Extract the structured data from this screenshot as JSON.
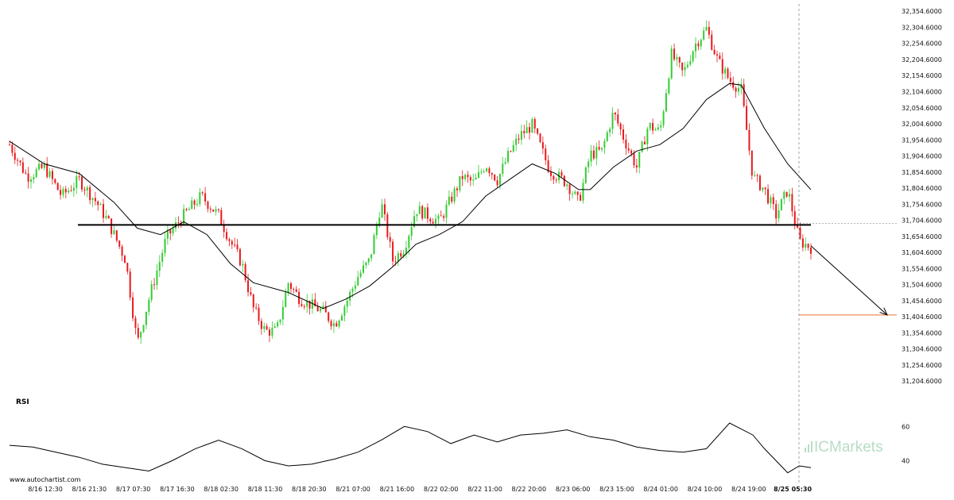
{
  "branding": {
    "watermark": "www.autochartist.com",
    "logo_text": "ICMarkets"
  },
  "colors": {
    "up": "#33cc33",
    "down": "#e8191c",
    "line": "#000000",
    "target": "#e8762c",
    "grid": "#dddddd"
  },
  "chart_data": {
    "type": "candlestick",
    "price_axis": {
      "range": [
        31180,
        32370
      ],
      "ticks": [
        "32,354.6000",
        "32,304.6000",
        "32,254.6000",
        "32,204.6000",
        "32,154.6000",
        "32,104.6000",
        "32,054.6000",
        "32,004.6000",
        "31,954.6000",
        "31,904.6000",
        "31,854.6000",
        "31,804.6000",
        "31,754.6000",
        "31,704.6000",
        "31,654.6000",
        "31,604.6000",
        "31,554.6000",
        "31,504.6000",
        "31,454.6000",
        "31,404.6000",
        "31,354.6000",
        "31,304.6000",
        "31,254.6000",
        "31,204.6000"
      ]
    },
    "time_axis": {
      "labels": [
        "8/16 12:30",
        "8/16 21:30",
        "8/17 07:30",
        "8/17 16:30",
        "8/18 02:30",
        "8/18 11:30",
        "8/18 20:30",
        "8/21 07:00",
        "8/21 16:00",
        "8/22 02:00",
        "8/22 11:00",
        "8/22 20:00",
        "8/23 06:00",
        "8/23 15:00",
        "8/24 01:00",
        "8/24 10:00",
        "8/24 19:00",
        "8/25 05:30"
      ],
      "highlighted": "8/25 05:30"
    },
    "price_path": [
      [
        0,
        31940
      ],
      [
        3,
        31840
      ],
      [
        6,
        31870
      ],
      [
        9,
        31780
      ],
      [
        12,
        31830
      ],
      [
        15,
        31760
      ],
      [
        17,
        31700
      ],
      [
        20,
        31580
      ],
      [
        22,
        31320
      ],
      [
        24,
        31460
      ],
      [
        27,
        31650
      ],
      [
        30,
        31720
      ],
      [
        33,
        31780
      ],
      [
        36,
        31720
      ],
      [
        38,
        31640
      ],
      [
        40,
        31570
      ],
      [
        42,
        31430
      ],
      [
        44,
        31360
      ],
      [
        46,
        31360
      ],
      [
        48,
        31510
      ],
      [
        50,
        31460
      ],
      [
        52,
        31440
      ],
      [
        54,
        31420
      ],
      [
        56,
        31380
      ],
      [
        58,
        31450
      ],
      [
        60,
        31530
      ],
      [
        62,
        31580
      ],
      [
        64,
        31760
      ],
      [
        66,
        31580
      ],
      [
        68,
        31620
      ],
      [
        70,
        31740
      ],
      [
        72,
        31720
      ],
      [
        74,
        31700
      ],
      [
        76,
        31770
      ],
      [
        78,
        31840
      ],
      [
        80,
        31820
      ],
      [
        82,
        31880
      ],
      [
        84,
        31830
      ],
      [
        86,
        31910
      ],
      [
        88,
        31970
      ],
      [
        90,
        32000
      ],
      [
        93,
        31860
      ],
      [
        96,
        31820
      ],
      [
        98,
        31760
      ],
      [
        100,
        31910
      ],
      [
        102,
        31920
      ],
      [
        104,
        32040
      ],
      [
        106,
        31950
      ],
      [
        108,
        31870
      ],
      [
        110,
        32000
      ],
      [
        112,
        31980
      ],
      [
        114,
        32220
      ],
      [
        116,
        32160
      ],
      [
        118,
        32250
      ],
      [
        120,
        32300
      ],
      [
        122,
        32200
      ],
      [
        124,
        32140
      ],
      [
        126,
        32110
      ],
      [
        128,
        31840
      ],
      [
        130,
        31800
      ],
      [
        132,
        31720
      ],
      [
        134,
        31800
      ],
      [
        136,
        31640
      ],
      [
        138,
        31620
      ]
    ],
    "moving_average": [
      [
        0,
        31950
      ],
      [
        6,
        31880
      ],
      [
        12,
        31850
      ],
      [
        18,
        31760
      ],
      [
        22,
        31680
      ],
      [
        26,
        31660
      ],
      [
        30,
        31700
      ],
      [
        34,
        31660
      ],
      [
        38,
        31570
      ],
      [
        42,
        31510
      ],
      [
        48,
        31480
      ],
      [
        54,
        31430
      ],
      [
        58,
        31460
      ],
      [
        62,
        31500
      ],
      [
        66,
        31560
      ],
      [
        70,
        31630
      ],
      [
        74,
        31660
      ],
      [
        78,
        31700
      ],
      [
        82,
        31780
      ],
      [
        86,
        31830
      ],
      [
        90,
        31880
      ],
      [
        94,
        31850
      ],
      [
        98,
        31800
      ],
      [
        100,
        31800
      ],
      [
        104,
        31870
      ],
      [
        108,
        31920
      ],
      [
        112,
        31940
      ],
      [
        116,
        31990
      ],
      [
        120,
        32080
      ],
      [
        124,
        32130
      ],
      [
        126,
        32125
      ],
      [
        130,
        31990
      ],
      [
        134,
        31880
      ],
      [
        138,
        31800
      ]
    ],
    "support_level": 31690,
    "target_level": 31410,
    "projection": {
      "from": [
        138,
        31625
      ],
      "to": [
        152,
        31410
      ]
    },
    "rsi": {
      "label": "RSI",
      "levels": [
        60,
        40
      ],
      "range": [
        31,
        68
      ],
      "values": [
        [
          0,
          49
        ],
        [
          4,
          48
        ],
        [
          8,
          45
        ],
        [
          12,
          42
        ],
        [
          16,
          38
        ],
        [
          20,
          36
        ],
        [
          24,
          34
        ],
        [
          28,
          40
        ],
        [
          32,
          47
        ],
        [
          36,
          52
        ],
        [
          40,
          47
        ],
        [
          44,
          40
        ],
        [
          48,
          37
        ],
        [
          52,
          38
        ],
        [
          56,
          41
        ],
        [
          60,
          45
        ],
        [
          64,
          52
        ],
        [
          68,
          60
        ],
        [
          72,
          57
        ],
        [
          76,
          50
        ],
        [
          80,
          55
        ],
        [
          84,
          51
        ],
        [
          88,
          55
        ],
        [
          92,
          56
        ],
        [
          96,
          58
        ],
        [
          100,
          54
        ],
        [
          104,
          52
        ],
        [
          108,
          48
        ],
        [
          112,
          46
        ],
        [
          116,
          45
        ],
        [
          120,
          47
        ],
        [
          124,
          62
        ],
        [
          128,
          55
        ],
        [
          130,
          47
        ],
        [
          132,
          40
        ],
        [
          134,
          33
        ],
        [
          136,
          37
        ],
        [
          138,
          36
        ]
      ]
    }
  }
}
